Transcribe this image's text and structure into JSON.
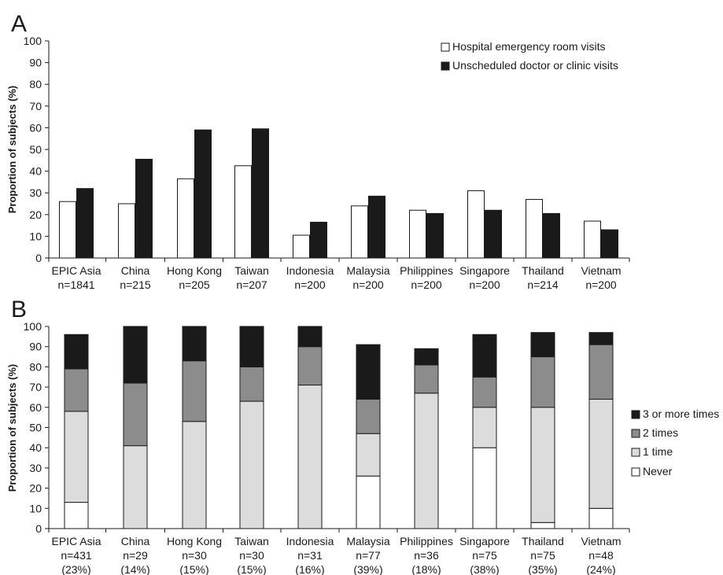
{
  "chart_data": [
    {
      "panel_label": "A",
      "type": "bar",
      "ylabel": "Proportion of subjects (%)",
      "ylim": [
        0,
        100
      ],
      "yticks": [
        0,
        10,
        20,
        30,
        40,
        50,
        60,
        70,
        80,
        90,
        100
      ],
      "categories": [
        "EPIC Asia",
        "China",
        "Hong Kong",
        "Taiwan",
        "Indonesia",
        "Malaysia",
        "Philippines",
        "Singapore",
        "Thailand",
        "Vietnam"
      ],
      "category_sublabels": [
        "n=1841",
        "n=215",
        "n=205",
        "n=207",
        "n=200",
        "n=200",
        "n=200",
        "n=200",
        "n=214",
        "n=200"
      ],
      "legend_position": "top-right",
      "grid": false,
      "series": [
        {
          "name": "Hospital emergency room visits",
          "color": "#ffffff",
          "values": [
            26,
            25,
            36.5,
            42.5,
            10.5,
            24,
            22,
            31,
            27,
            17
          ]
        },
        {
          "name": "Unscheduled doctor or clinic visits",
          "color": "#1a1a1a",
          "values": [
            32,
            45.5,
            59,
            59.5,
            16.5,
            28.5,
            20.5,
            22,
            20.5,
            13
          ]
        }
      ]
    },
    {
      "panel_label": "B",
      "type": "bar",
      "stacked": true,
      "ylabel": "Proportion of subjects (%)",
      "ylim": [
        0,
        100
      ],
      "yticks": [
        0,
        10,
        20,
        30,
        40,
        50,
        60,
        70,
        80,
        90,
        100
      ],
      "categories": [
        "EPIC Asia",
        "China",
        "Hong Kong",
        "Taiwan",
        "Indonesia",
        "Malaysia",
        "Philippines",
        "Singapore",
        "Thailand",
        "Vietnam"
      ],
      "category_sublabels": [
        "n=431",
        "n=29",
        "n=30",
        "n=30",
        "n=31",
        "n=77",
        "n=36",
        "n=75",
        "n=75",
        "n=48"
      ],
      "category_percent_labels": [
        "(23%)",
        "(14%)",
        "(15%)",
        "(15%)",
        "(16%)",
        "(39%)",
        "(18%)",
        "(38%)",
        "(35%)",
        "(24%)"
      ],
      "legend_position": "right",
      "grid": false,
      "series": [
        {
          "name": "Never",
          "color": "#ffffff",
          "values": [
            13,
            0,
            0,
            0,
            0,
            26,
            0,
            40,
            3,
            10
          ]
        },
        {
          "name": "1 time",
          "color": "#dcdcdc",
          "values": [
            45,
            41,
            53,
            63,
            71,
            21,
            67,
            20,
            57,
            54
          ]
        },
        {
          "name": "2 times",
          "color": "#8c8c8c",
          "values": [
            21,
            31,
            30,
            17,
            19,
            17,
            14,
            15,
            25,
            27
          ]
        },
        {
          "name": "3 or more times",
          "color": "#1a1a1a",
          "values": [
            17,
            28,
            17,
            20,
            10,
            27,
            8,
            21,
            12,
            6
          ]
        }
      ]
    }
  ]
}
